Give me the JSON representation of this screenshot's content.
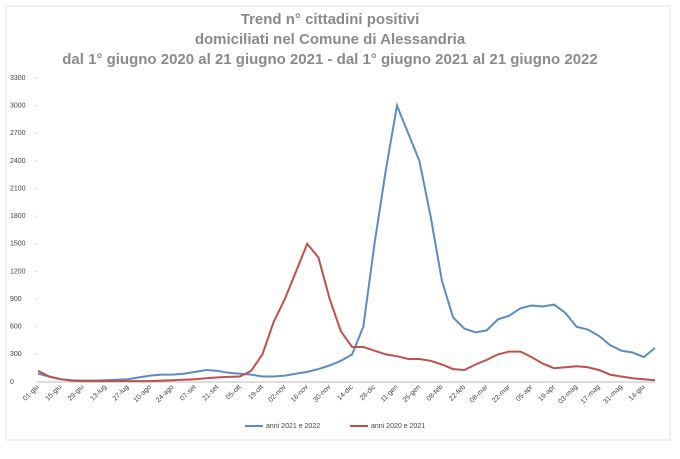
{
  "chart_data": {
    "type": "line",
    "title": "Trend n° cittadini positivi",
    "subtitle": [
      "domiciliati nel Comune di Alessandria",
      "dal 1° giugno 2020 al 21 giugno 2021 - dal 1° giugno 2021 al 21 giugno 2022"
    ],
    "categories": [
      "01-giu",
      null,
      "15-giu",
      null,
      "29-giu",
      null,
      "13-lug",
      null,
      "27-lug",
      null,
      "10-ago",
      null,
      "24-ago",
      null,
      "07-set",
      null,
      "21-set",
      null,
      "05-ott",
      null,
      "19-ott",
      null,
      "02-nov",
      null,
      "16-nov",
      null,
      "30-nov",
      null,
      "14-dic",
      null,
      "28-dic",
      null,
      "11-gen",
      null,
      "25-gen",
      null,
      "08-feb",
      null,
      "22-feb",
      null,
      "08-mar",
      null,
      "22-mar",
      null,
      "05-apr",
      null,
      "19-apr",
      null,
      "03-mag",
      null,
      "17-mag",
      null,
      "31-mag",
      null,
      "14-giu",
      null
    ],
    "series": [
      {
        "name": "anni 2021 e 2022",
        "color": "#5b8cc4",
        "values": [
          90,
          60,
          30,
          20,
          15,
          15,
          20,
          25,
          30,
          50,
          70,
          80,
          80,
          90,
          110,
          130,
          120,
          100,
          90,
          80,
          60,
          60,
          70,
          90,
          110,
          140,
          180,
          230,
          300,
          600,
          1500,
          2300,
          3000,
          2700,
          2400,
          1800,
          1100,
          700,
          580,
          540,
          560,
          680,
          720,
          800,
          830,
          820,
          840,
          750,
          600,
          570,
          500,
          400,
          340,
          320,
          270,
          370
        ]
      },
      {
        "name": "anni 2020 e 2021",
        "color": "#c0504d",
        "values": [
          120,
          60,
          30,
          15,
          10,
          10,
          10,
          10,
          10,
          10,
          10,
          15,
          20,
          25,
          30,
          40,
          50,
          55,
          60,
          120,
          300,
          650,
          900,
          1200,
          1500,
          1350,
          900,
          550,
          380,
          380,
          340,
          300,
          280,
          250,
          250,
          230,
          190,
          140,
          130,
          190,
          240,
          300,
          330,
          330,
          270,
          200,
          150,
          160,
          170,
          160,
          130,
          80,
          60,
          40,
          30,
          20
        ]
      }
    ],
    "ylim": [
      0,
      3300
    ],
    "yticks": [
      0,
      300,
      600,
      900,
      1200,
      1500,
      1800,
      2100,
      2400,
      2700,
      3000,
      3300
    ],
    "legend": "bottom"
  }
}
